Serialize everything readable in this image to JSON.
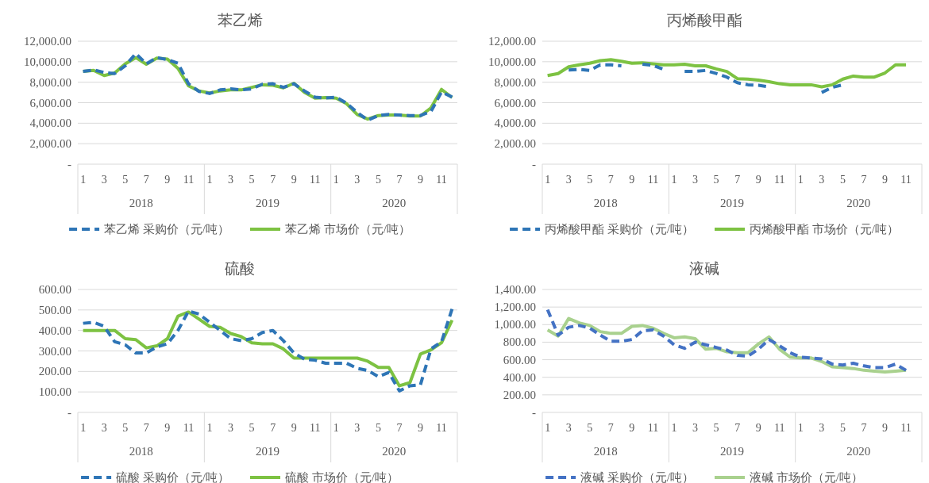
{
  "chart_data": [
    {
      "type": "line",
      "title": "苯乙烯",
      "categories": [
        "1",
        null,
        "3",
        null,
        "5",
        null,
        "7",
        null,
        "9",
        null,
        "11",
        null,
        "1",
        null,
        "3",
        null,
        "5",
        null,
        "7",
        null,
        "9",
        null,
        "11",
        null,
        "1",
        null,
        "3",
        null,
        "5",
        null,
        "7",
        null,
        "9",
        null,
        "11",
        null
      ],
      "series": [
        {
          "name": "苯乙烯 采购价（元/吨）",
          "color": "#2e75b6",
          "line_style": "dashed",
          "values": [
            9050,
            9200,
            8950,
            8850,
            9600,
            10800,
            9800,
            10400,
            10200,
            9850,
            7850,
            7100,
            6900,
            7250,
            7350,
            7250,
            7350,
            7800,
            7850,
            7500,
            7850,
            7150,
            6550,
            6450,
            6550,
            5950,
            5050,
            4300,
            4750,
            4850,
            4800,
            4750,
            4750,
            5150,
            7050,
            6550
          ]
        },
        {
          "name": "苯乙烯 市场价（元/吨）",
          "color": "#7dc242",
          "line_style": "solid",
          "values": [
            9050,
            9150,
            8650,
            8900,
            9800,
            10400,
            9750,
            10350,
            10250,
            9350,
            7650,
            7150,
            6950,
            7150,
            7250,
            7250,
            7500,
            7750,
            7700,
            7450,
            7900,
            7000,
            6450,
            6500,
            6450,
            5900,
            4850,
            4400,
            4750,
            4800,
            4800,
            4700,
            4700,
            5500,
            7300,
            6500
          ]
        }
      ],
      "ylim": [
        0,
        12000
      ],
      "yticks": [
        {
          "value": 0,
          "label": "-"
        },
        {
          "value": 2000,
          "label": "2,000.00"
        },
        {
          "value": 4000,
          "label": "4,000.00"
        },
        {
          "value": 6000,
          "label": "6,000.00"
        },
        {
          "value": 8000,
          "label": "8,000.00"
        },
        {
          "value": 10000,
          "label": "10,000.00"
        },
        {
          "value": 12000,
          "label": "12,000.00"
        }
      ],
      "grid": "y",
      "legend": "bottom",
      "annotations": [
        "2018",
        "2019",
        "2020"
      ]
    },
    {
      "type": "line",
      "title": "丙烯酸甲酯",
      "categories": [
        "1",
        null,
        "3",
        null,
        "5",
        null,
        "7",
        null,
        "9",
        null,
        "11",
        null,
        "1",
        null,
        "3",
        null,
        "5",
        null,
        "7",
        null,
        "9",
        null,
        "11",
        null,
        "1",
        null,
        "3",
        null,
        "5",
        null,
        "7",
        null,
        "9",
        null,
        "11",
        null
      ],
      "series": [
        {
          "name": "丙烯酸甲酯 采购价（元/吨）",
          "color": "#2e75b6",
          "line_style": "dashed",
          "values": [
            null,
            null,
            9200,
            9250,
            9150,
            9700,
            9700,
            9600,
            null,
            9750,
            9650,
            9250,
            null,
            9050,
            9050,
            9150,
            8850,
            8500,
            7950,
            7750,
            7700,
            7550,
            null,
            null,
            null,
            null,
            7000,
            7500,
            7750,
            null,
            null,
            null,
            null,
            null,
            null,
            null
          ]
        },
        {
          "name": "丙烯酸甲酯 市场价（元/吨）",
          "color": "#7dc242",
          "line_style": "solid",
          "values": [
            8650,
            8850,
            9500,
            9700,
            9850,
            10100,
            10200,
            10050,
            9850,
            9900,
            9800,
            9700,
            9700,
            9750,
            9600,
            9600,
            9300,
            9050,
            8350,
            8300,
            8200,
            8050,
            7850,
            7750,
            7750,
            7750,
            7550,
            7750,
            8300,
            8600,
            8500,
            8500,
            8900,
            9700,
            9700,
            null
          ]
        }
      ],
      "ylim": [
        0,
        12000
      ],
      "yticks": [
        {
          "value": 0,
          "label": "-"
        },
        {
          "value": 2000,
          "label": "2,000.00"
        },
        {
          "value": 4000,
          "label": "4,000.00"
        },
        {
          "value": 6000,
          "label": "6,000.00"
        },
        {
          "value": 8000,
          "label": "8,000.00"
        },
        {
          "value": 10000,
          "label": "10,000.00"
        },
        {
          "value": 12000,
          "label": "12,000.00"
        }
      ],
      "grid": "y",
      "legend": "bottom",
      "annotations": [
        "2018",
        "2019",
        "2020"
      ]
    },
    {
      "type": "line",
      "title": "硫酸",
      "categories": [
        "1",
        null,
        "3",
        null,
        "5",
        null,
        "7",
        null,
        "9",
        null,
        "11",
        null,
        "1",
        null,
        "3",
        null,
        "5",
        null,
        "7",
        null,
        "9",
        null,
        "11",
        null,
        "1",
        null,
        "3",
        null,
        "5",
        null,
        "7",
        null,
        "9",
        null,
        "11",
        null
      ],
      "series": [
        {
          "name": "硫酸 采购价（元/吨）",
          "color": "#2e75b6",
          "line_style": "dashed",
          "values": [
            435,
            440,
            420,
            345,
            330,
            290,
            290,
            320,
            335,
            400,
            495,
            480,
            440,
            400,
            360,
            350,
            360,
            390,
            400,
            350,
            290,
            260,
            255,
            240,
            240,
            240,
            215,
            205,
            175,
            195,
            105,
            130,
            135,
            310,
            345,
            505
          ]
        },
        {
          "name": "硫酸 市场价（元/吨）",
          "color": "#7dc242",
          "line_style": "solid",
          "values": [
            400,
            400,
            400,
            400,
            360,
            355,
            315,
            325,
            360,
            470,
            490,
            455,
            420,
            415,
            385,
            370,
            340,
            335,
            335,
            310,
            265,
            265,
            265,
            265,
            265,
            265,
            265,
            250,
            220,
            220,
            130,
            145,
            285,
            305,
            340,
            450
          ]
        }
      ],
      "ylim": [
        0,
        600
      ],
      "yticks": [
        {
          "value": 0,
          "label": "-"
        },
        {
          "value": 100,
          "label": "100.00"
        },
        {
          "value": 200,
          "label": "200.00"
        },
        {
          "value": 300,
          "label": "300.00"
        },
        {
          "value": 400,
          "label": "400.00"
        },
        {
          "value": 500,
          "label": "500.00"
        },
        {
          "value": 600,
          "label": "600.00"
        }
      ],
      "grid": "y",
      "legend": "bottom",
      "annotations": [
        "2018",
        "2019",
        "2020"
      ]
    },
    {
      "type": "line",
      "title": "液碱",
      "categories": [
        "1",
        null,
        "3",
        null,
        "5",
        null,
        "7",
        null,
        "9",
        null,
        "11",
        null,
        "1",
        null,
        "3",
        null,
        "5",
        null,
        "7",
        null,
        "9",
        null,
        "11",
        null,
        "1",
        null,
        "3",
        null,
        "5",
        null,
        "7",
        null,
        "9",
        null,
        "11",
        null
      ],
      "series": [
        {
          "name": "液碱 采购价（元/吨）",
          "color": "#4472c4",
          "line_style": "dashed",
          "values": [
            1170,
            880,
            970,
            990,
            960,
            880,
            810,
            810,
            830,
            930,
            940,
            870,
            770,
            730,
            800,
            770,
            740,
            710,
            650,
            640,
            720,
            830,
            760,
            680,
            630,
            620,
            610,
            550,
            540,
            560,
            530,
            510,
            510,
            550,
            480,
            null
          ]
        },
        {
          "name": "液碱 市场价（元/吨）",
          "color": "#a9d18e",
          "line_style": "solid",
          "values": [
            940,
            870,
            1070,
            1020,
            990,
            920,
            900,
            900,
            980,
            990,
            960,
            900,
            850,
            860,
            840,
            720,
            730,
            690,
            680,
            680,
            780,
            860,
            720,
            630,
            620,
            620,
            580,
            520,
            510,
            500,
            480,
            470,
            460,
            470,
            480,
            null
          ]
        }
      ],
      "ylim": [
        0,
        1400
      ],
      "yticks": [
        {
          "value": 0,
          "label": "-"
        },
        {
          "value": 200,
          "label": "200.00"
        },
        {
          "value": 400,
          "label": "400.00"
        },
        {
          "value": 600,
          "label": "600.00"
        },
        {
          "value": 800,
          "label": "800.00"
        },
        {
          "value": 1000,
          "label": "1,000.00"
        },
        {
          "value": 1200,
          "label": "1,200.00"
        },
        {
          "value": 1400,
          "label": "1,400.00"
        }
      ],
      "grid": "y",
      "legend": "bottom",
      "annotations": [
        "2018",
        "2019",
        "2020"
      ]
    }
  ]
}
